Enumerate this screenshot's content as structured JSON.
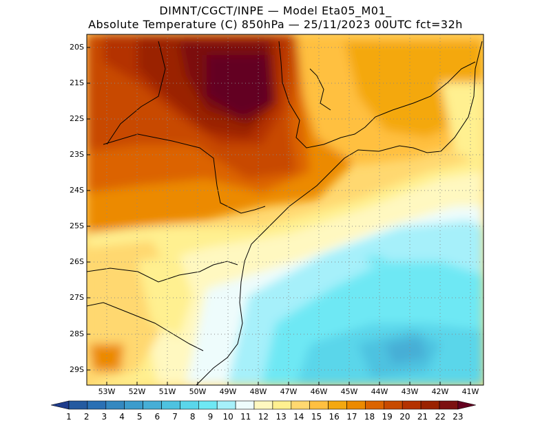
{
  "header": {
    "line1": "DIMNT/CGCT/INPE —  Model Eta05_M01_",
    "line2": "Absolute Temperature (C) 850hPa —  25/11/2023 00UTC fct=32h"
  },
  "map": {
    "lat_labels": [
      "20S",
      "21S",
      "22S",
      "23S",
      "24S",
      "25S",
      "26S",
      "27S",
      "28S",
      "29S"
    ],
    "lon_labels": [
      "53W",
      "52W",
      "51W",
      "50W",
      "49W",
      "48W",
      "47W",
      "46W",
      "45W",
      "44W",
      "43W",
      "42W",
      "41W"
    ]
  },
  "colorbar": {
    "labels": [
      "1",
      "2",
      "3",
      "4",
      "5",
      "6",
      "7",
      "8",
      "9",
      "10",
      "11",
      "12",
      "13",
      "14",
      "15",
      "16",
      "17",
      "18",
      "19",
      "20",
      "21",
      "22",
      "23"
    ],
    "colors": [
      "#1e3c8c",
      "#245aa0",
      "#2a70b4",
      "#3488c0",
      "#3c9ccc",
      "#46aed6",
      "#4ec2e0",
      "#5ad6ea",
      "#6ee8f4",
      "#a6f0fa",
      "#eefcfc",
      "#fff8c0",
      "#fff090",
      "#ffd870",
      "#ffc040",
      "#f4a810",
      "#ec8a00",
      "#dc6400",
      "#c84a00",
      "#b43200",
      "#9a2200",
      "#7c1010",
      "#640020"
    ]
  }
}
